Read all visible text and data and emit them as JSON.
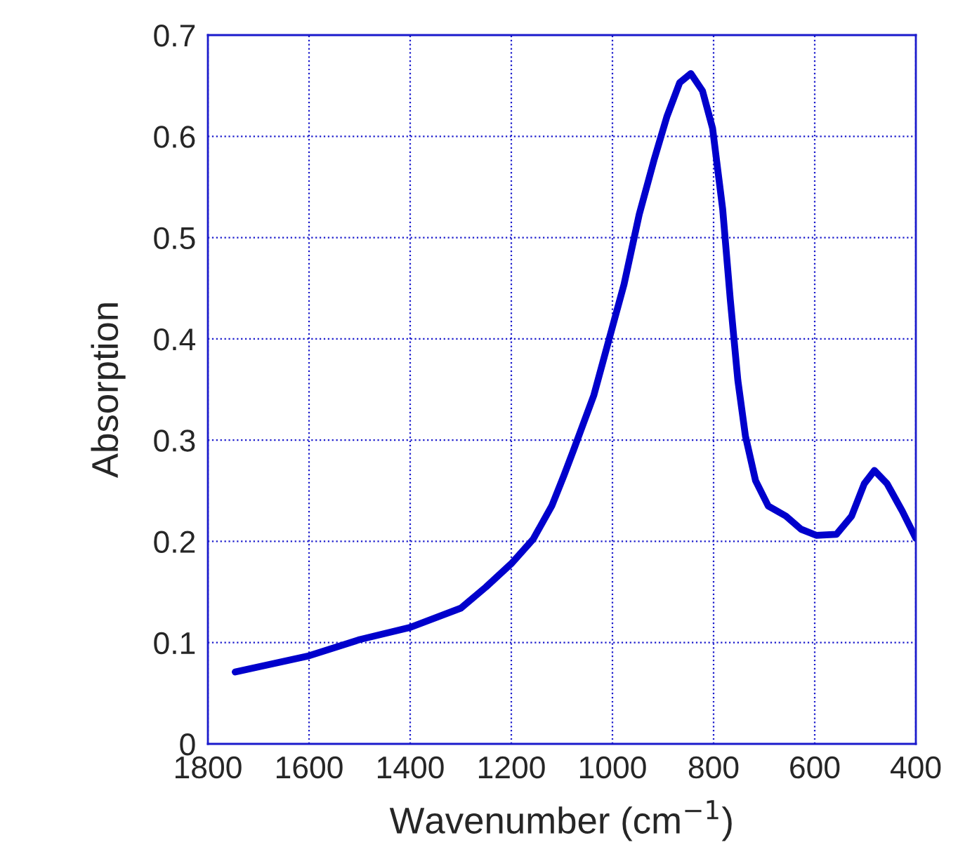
{
  "chart_data": {
    "type": "line",
    "xlabel": "Wavenumber (cm$^{−1}$)",
    "ylabel": "Absorption",
    "x": [
      1746,
      1600,
      1500,
      1400,
      1300,
      1250,
      1200,
      1157,
      1120,
      1096,
      1077,
      1037,
      1007,
      977,
      947,
      917,
      892,
      867,
      845,
      822,
      802,
      782,
      767,
      752,
      737,
      717,
      692,
      657,
      627,
      597,
      557,
      527,
      502,
      482,
      457,
      427,
      400
    ],
    "series": [
      {
        "color": "#0000cc",
        "values": [
          0.071,
          0.087,
          0.103,
          0.115,
          0.134,
          0.155,
          0.178,
          0.202,
          0.235,
          0.265,
          0.29,
          0.344,
          0.399,
          0.454,
          0.523,
          0.578,
          0.62,
          0.653,
          0.662,
          0.645,
          0.608,
          0.528,
          0.439,
          0.359,
          0.304,
          0.26,
          0.235,
          0.225,
          0.212,
          0.206,
          0.207,
          0.225,
          0.257,
          0.27,
          0.257,
          0.23,
          0.203
        ]
      }
    ],
    "xlim": [
      1800,
      400
    ],
    "ylim": [
      0,
      0.7
    ],
    "xticks": [
      1800,
      1600,
      1400,
      1200,
      1000,
      800,
      600,
      400
    ],
    "yticks": [
      0,
      0.1,
      0.2,
      0.3,
      0.4,
      0.5,
      0.6,
      0.7
    ],
    "grid": true,
    "marker": "none",
    "line_style": "solid"
  }
}
